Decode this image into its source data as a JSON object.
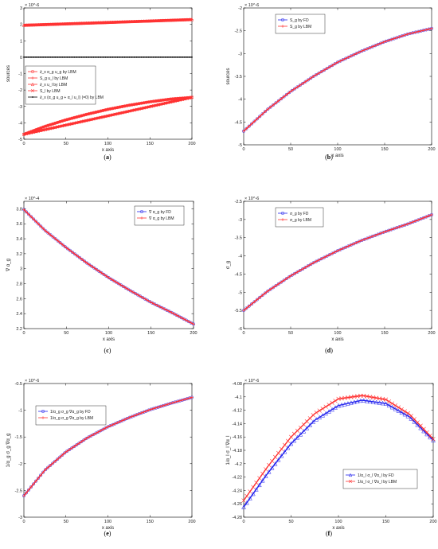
{
  "figure": {
    "panels": [
      {
        "id": "a",
        "caption_open": "(",
        "caption_letter": "a",
        "caption_close": ")"
      },
      {
        "id": "b",
        "caption_open": "(",
        "caption_letter": "b",
        "caption_close": ")"
      },
      {
        "id": "c",
        "caption_open": "(",
        "caption_letter": "c",
        "caption_close": ")"
      },
      {
        "id": "d",
        "caption_open": "(",
        "caption_letter": "d",
        "caption_close": ")"
      },
      {
        "id": "e",
        "caption_open": "(",
        "caption_letter": "e",
        "caption_close": ")"
      },
      {
        "id": "f",
        "caption_open": "(",
        "caption_letter": "f",
        "caption_close": ")"
      }
    ]
  },
  "chart_data": [
    {
      "type": "line",
      "xlabel": "x axis",
      "ylabel": "sources",
      "exponent": "× 10^-6",
      "xlim": [
        0,
        200
      ],
      "ylim": [
        -5,
        3
      ],
      "xticks": [
        0,
        50,
        100,
        150,
        200
      ],
      "yticks": [
        -5,
        -4,
        -3,
        -2,
        -1,
        0,
        1,
        2,
        3
      ],
      "legend": "lower-left",
      "series": [
        {
          "name": "∂_x α_g u_g by LBM",
          "color": "#ff3333",
          "marker": "o",
          "x": [
            0,
            25,
            50,
            75,
            100,
            125,
            150,
            175,
            200
          ],
          "y": [
            -4.7,
            -4.22,
            -3.82,
            -3.48,
            -3.18,
            -2.93,
            -2.72,
            -2.55,
            -2.45
          ]
        },
        {
          "name": "S_g u_l by LBM",
          "color": "#ff3333",
          "marker": "+",
          "x": [
            0,
            25,
            50,
            75,
            100,
            125,
            150,
            175,
            200
          ],
          "y": [
            1.95,
            1.99,
            2.03,
            2.07,
            2.11,
            2.16,
            2.2,
            2.25,
            2.3
          ]
        },
        {
          "name": "∂_x u_l by LBM",
          "color": "#ff3333",
          "marker": "^",
          "x": [
            0,
            200
          ],
          "y": [
            1.95,
            2.3
          ]
        },
        {
          "name": "S_l by LBM",
          "color": "#ff3333",
          "marker": "x",
          "x": [
            0,
            200
          ],
          "y": [
            -4.7,
            -2.45
          ]
        },
        {
          "name": "∂_x (α_g u_g + α_l u_l) (=0) by LBM",
          "color": "#000000",
          "marker": ".",
          "x": [
            0,
            50,
            100,
            150,
            200
          ],
          "y": [
            0,
            0,
            0,
            0,
            0
          ]
        }
      ]
    },
    {
      "type": "line",
      "xlabel": "x axis",
      "ylabel": "sources",
      "exponent": "× 10^-6",
      "xlim": [
        0,
        200
      ],
      "ylim": [
        -5,
        -2
      ],
      "xticks": [
        0,
        50,
        100,
        150,
        200
      ],
      "yticks": [
        -5,
        -4.5,
        -4,
        -3.5,
        -3,
        -2.5,
        -2
      ],
      "legend": "top-left",
      "series": [
        {
          "name": "S_g by FD",
          "color": "#2222ee",
          "marker": "o",
          "x": [
            0,
            25,
            50,
            75,
            100,
            125,
            150,
            175,
            200
          ],
          "y": [
            -4.7,
            -4.23,
            -3.83,
            -3.49,
            -3.19,
            -2.95,
            -2.74,
            -2.57,
            -2.45
          ]
        },
        {
          "name": "S_g by LBM",
          "color": "#ff3333",
          "marker": "+",
          "x": [
            0,
            25,
            50,
            75,
            100,
            125,
            150,
            175,
            200
          ],
          "y": [
            -4.7,
            -4.23,
            -3.83,
            -3.49,
            -3.19,
            -2.95,
            -2.74,
            -2.57,
            -2.45
          ]
        }
      ]
    },
    {
      "type": "line",
      "xlabel": "x axis",
      "ylabel": "∇ α_g",
      "exponent": "× 10^-4",
      "xlim": [
        0,
        200
      ],
      "ylim": [
        2.2,
        3.9
      ],
      "xticks": [
        0,
        50,
        100,
        150,
        200
      ],
      "yticks": [
        2.2,
        2.4,
        2.6,
        2.8,
        3,
        3.2,
        3.4,
        3.6,
        3.8
      ],
      "legend": "top-right",
      "series": [
        {
          "name": "∇ α_g by FD",
          "color": "#2222ee",
          "marker": "o",
          "x": [
            0,
            25,
            50,
            75,
            100,
            125,
            150,
            175,
            200
          ],
          "y": [
            3.79,
            3.51,
            3.28,
            3.07,
            2.88,
            2.71,
            2.55,
            2.41,
            2.26
          ]
        },
        {
          "name": "∇ α_g by LBM",
          "color": "#ff3333",
          "marker": "+",
          "x": [
            0,
            25,
            50,
            75,
            100,
            125,
            150,
            175,
            200
          ],
          "y": [
            3.79,
            3.51,
            3.28,
            3.07,
            2.88,
            2.71,
            2.55,
            2.41,
            2.26
          ]
        }
      ]
    },
    {
      "type": "line",
      "xlabel": "x axis",
      "ylabel": "σ_g",
      "exponent": "× 10^-6",
      "xlim": [
        0,
        200
      ],
      "ylim": [
        -6,
        -2.5
      ],
      "xticks": [
        0,
        50,
        100,
        150,
        200
      ],
      "yticks": [
        -6,
        -5.5,
        -5,
        -4.5,
        -4,
        -3.5,
        -3,
        -2.5
      ],
      "legend": "top-left",
      "series": [
        {
          "name": "σ_g by FD",
          "color": "#2222ee",
          "marker": "o",
          "x": [
            0,
            25,
            50,
            75,
            100,
            125,
            150,
            175,
            200
          ],
          "y": [
            -5.5,
            -4.98,
            -4.55,
            -4.18,
            -3.86,
            -3.58,
            -3.34,
            -3.12,
            -2.87
          ]
        },
        {
          "name": "σ_g by LBM",
          "color": "#ff3333",
          "marker": "+",
          "x": [
            0,
            25,
            50,
            75,
            100,
            125,
            150,
            175,
            200
          ],
          "y": [
            -5.5,
            -4.98,
            -4.55,
            -4.18,
            -3.86,
            -3.58,
            -3.34,
            -3.12,
            -2.87
          ]
        }
      ]
    },
    {
      "type": "line",
      "xlabel": "x axis",
      "ylabel": "1/α_g σ_g ∇α_g",
      "exponent": "× 10^-6",
      "xlim": [
        0,
        200
      ],
      "ylim": [
        -3,
        -0.5
      ],
      "xticks": [
        0,
        50,
        100,
        150,
        200
      ],
      "yticks": [
        -3,
        -2.5,
        -2,
        -1.5,
        -1,
        -0.5
      ],
      "legend": "top-left",
      "series": [
        {
          "name": "1/α_g σ_g ∇α_g by FD",
          "color": "#2222ee",
          "marker": "o",
          "x": [
            0,
            25,
            50,
            75,
            100,
            125,
            150,
            175,
            200
          ],
          "y": [
            -2.6,
            -2.12,
            -1.78,
            -1.52,
            -1.31,
            -1.14,
            -0.99,
            -0.87,
            -0.76
          ]
        },
        {
          "name": "1/α_g σ_g ∇α_g by LBM",
          "color": "#ff3333",
          "marker": "+",
          "x": [
            0,
            25,
            50,
            75,
            100,
            125,
            150,
            175,
            200
          ],
          "y": [
            -2.6,
            -2.12,
            -1.78,
            -1.52,
            -1.31,
            -1.14,
            -0.99,
            -0.87,
            -0.76
          ]
        }
      ]
    },
    {
      "type": "line",
      "xlabel": "x axis",
      "ylabel": "1/α_l σ_l ∇α_l",
      "exponent": "× 10^-6",
      "xlim": [
        0,
        200
      ],
      "ylim": [
        -4.28,
        -4.08
      ],
      "xticks": [
        0,
        50,
        100,
        150,
        200
      ],
      "yticks": [
        -4.28,
        -4.26,
        -4.24,
        -4.22,
        -4.2,
        -4.18,
        -4.16,
        -4.14,
        -4.12,
        -4.1,
        -4.08
      ],
      "legend": "lower-right",
      "series": [
        {
          "name": "1/α_l σ_l ∇α_l by FD",
          "color": "#2222ee",
          "marker": "^",
          "x": [
            0,
            25,
            50,
            75,
            100,
            125,
            150,
            175,
            200
          ],
          "y": [
            -4.265,
            -4.215,
            -4.17,
            -4.135,
            -4.113,
            -4.105,
            -4.11,
            -4.13,
            -4.165
          ]
        },
        {
          "name": "1/α_l σ_l ∇α_l by LBM",
          "color": "#ff3333",
          "marker": "x",
          "x": [
            0,
            25,
            50,
            75,
            100,
            125,
            150,
            175,
            200
          ],
          "y": [
            -4.255,
            -4.205,
            -4.16,
            -4.125,
            -4.103,
            -4.098,
            -4.104,
            -4.126,
            -4.163
          ]
        }
      ]
    }
  ]
}
